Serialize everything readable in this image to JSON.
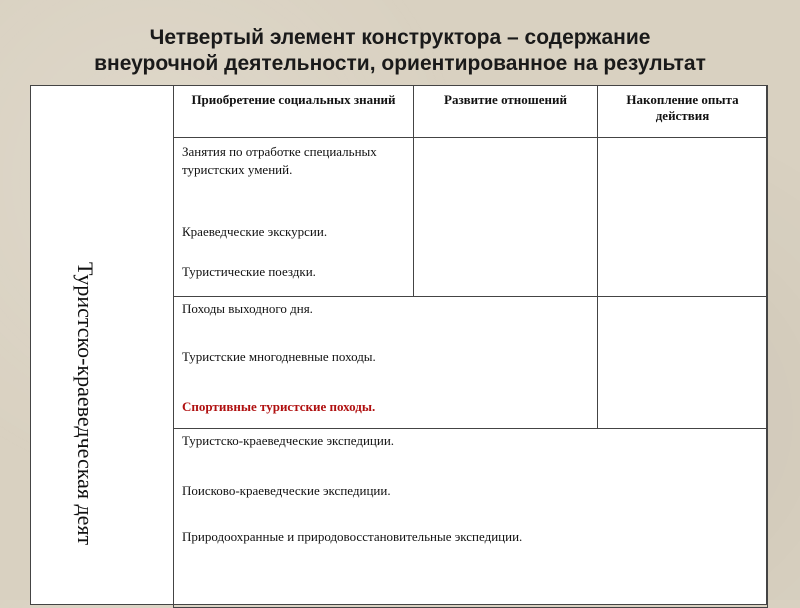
{
  "header": {
    "title": [
      "Четвертый элемент конструктора – содержание",
      "внеурочной деятельности, ориентированное на результат"
    ]
  },
  "table": {
    "side_label": "Туристско-краеведческая деят",
    "headers": [
      "Приобретение социальных знаний",
      "Развитие отношений",
      "Накопление опыта действия"
    ],
    "rows": [
      {
        "items": [
          "Занятия по отработке специальных туристских умений.",
          "Краеведческие экскурсии.",
          "Туристические поездки."
        ]
      },
      {
        "items": [
          "Походы выходного дня.",
          "Туристские многодневные походы.",
          "Спортивные туристские походы."
        ]
      },
      {
        "items": [
          "Туристско-краеведческие экспедиции.",
          "Поисково-краеведческие экспедиции.",
          "Природоохранные и природовосстановительные экспедиции."
        ]
      }
    ]
  }
}
